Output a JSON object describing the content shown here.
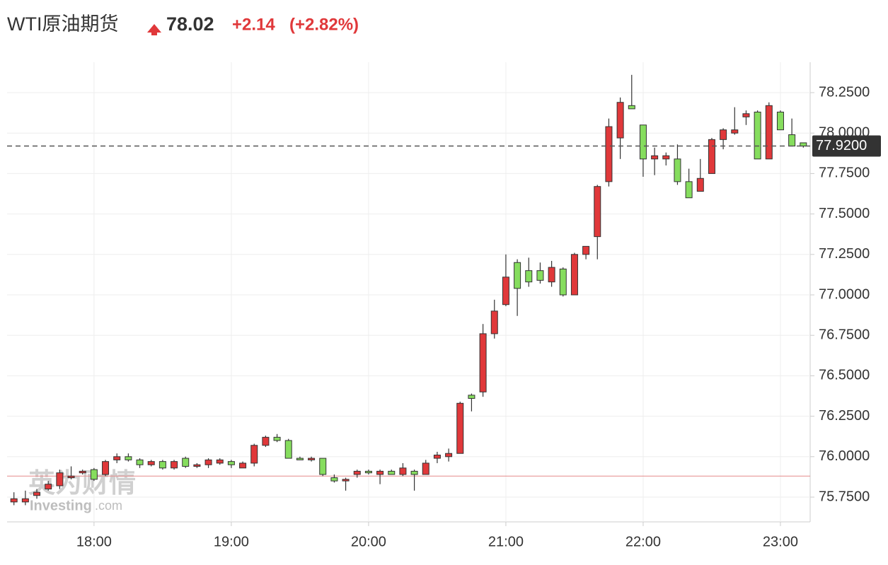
{
  "header": {
    "title": "WTI原油期货",
    "price": "78.02",
    "change": "+2.14",
    "change_pct": "(+2.82%)"
  },
  "watermark": {
    "cn": "英为财情",
    "en": "Investing",
    "en_suffix": ".com"
  },
  "chart_data": {
    "type": "candlestick",
    "x": [
      "17:25",
      "17:30",
      "17:35",
      "17:40",
      "17:45",
      "17:50",
      "17:55",
      "18:00",
      "18:05",
      "18:10",
      "18:15",
      "18:20",
      "18:25",
      "18:30",
      "18:35",
      "18:40",
      "18:45",
      "18:50",
      "18:55",
      "19:00",
      "19:05",
      "19:10",
      "19:15",
      "19:20",
      "19:25",
      "19:30",
      "19:35",
      "19:40",
      "19:45",
      "19:50",
      "19:55",
      "20:00",
      "20:05",
      "20:10",
      "20:15",
      "20:20",
      "20:25",
      "20:30",
      "20:35",
      "20:40",
      "20:45",
      "20:50",
      "20:55",
      "21:00",
      "21:05",
      "21:10",
      "21:15",
      "21:20",
      "21:25",
      "21:30",
      "21:35",
      "21:40",
      "21:45",
      "21:50",
      "21:55",
      "22:00",
      "22:05",
      "22:10",
      "22:15",
      "22:20",
      "22:25",
      "22:30",
      "22:35",
      "22:40",
      "22:45",
      "22:50",
      "22:55",
      "23:00",
      "23:05",
      "23:10"
    ],
    "open": [
      75.72,
      75.72,
      75.76,
      75.8,
      75.82,
      75.87,
      75.9,
      75.92,
      75.89,
      75.98,
      76.0,
      75.98,
      75.95,
      75.97,
      75.93,
      75.99,
      75.94,
      75.95,
      75.96,
      75.97,
      75.93,
      75.96,
      76.07,
      76.12,
      76.1,
      75.99,
      75.98,
      75.99,
      75.87,
      75.85,
      75.89,
      75.91,
      75.89,
      75.91,
      75.89,
      75.91,
      75.89,
      75.99,
      76.0,
      76.02,
      76.38,
      76.4,
      76.76,
      76.94,
      77.2,
      77.15,
      77.15,
      77.08,
      77.16,
      77.0,
      77.25,
      77.36,
      77.7,
      77.97,
      78.17,
      78.05,
      77.84,
      77.84,
      77.84,
      77.7,
      77.64,
      77.75,
      77.96,
      78.0,
      78.1,
      78.13,
      77.84,
      78.13,
      77.99,
      77.94
    ],
    "high": [
      75.78,
      75.79,
      75.8,
      75.85,
      75.92,
      75.94,
      75.92,
      75.93,
      75.98,
      76.02,
      76.02,
      75.99,
      75.98,
      75.98,
      75.98,
      76.0,
      75.96,
      75.99,
      75.99,
      75.98,
      75.97,
      76.08,
      76.13,
      76.14,
      76.11,
      76.0,
      76.0,
      75.99,
      75.89,
      75.87,
      75.92,
      75.92,
      75.92,
      75.92,
      75.96,
      75.92,
      75.98,
      76.03,
      76.05,
      76.34,
      76.39,
      76.82,
      76.97,
      77.25,
      77.22,
      77.23,
      77.2,
      77.21,
      77.17,
      77.26,
      77.3,
      77.68,
      78.09,
      78.22,
      78.36,
      78.05,
      77.91,
      77.88,
      77.93,
      77.78,
      77.84,
      77.97,
      78.03,
      78.16,
      78.14,
      78.14,
      78.19,
      78.14,
      78.09,
      77.94
    ],
    "low": [
      75.7,
      75.7,
      75.74,
      75.79,
      75.8,
      75.86,
      75.89,
      75.85,
      75.88,
      75.96,
      75.97,
      75.93,
      75.94,
      75.92,
      75.92,
      75.93,
      75.93,
      75.93,
      75.95,
      75.93,
      75.93,
      75.94,
      76.06,
      76.09,
      75.99,
      75.98,
      75.97,
      75.88,
      75.84,
      75.79,
      75.87,
      75.89,
      75.83,
      75.89,
      75.88,
      75.79,
      75.89,
      75.96,
      75.97,
      76.02,
      76.28,
      76.37,
      76.73,
      76.93,
      76.87,
      77.05,
      77.07,
      77.05,
      76.99,
      77.0,
      77.22,
      77.22,
      77.67,
      77.84,
      78.15,
      77.73,
      77.74,
      77.8,
      77.68,
      77.6,
      77.64,
      77.75,
      77.9,
      77.99,
      78.05,
      77.84,
      77.84,
      78.02,
      77.92,
      77.91
    ],
    "close": [
      75.74,
      75.74,
      75.78,
      75.83,
      75.9,
      75.88,
      75.91,
      75.86,
      75.97,
      76.0,
      75.98,
      75.95,
      75.97,
      75.93,
      75.97,
      75.94,
      75.95,
      75.98,
      75.98,
      75.95,
      75.96,
      76.07,
      76.12,
      76.1,
      75.99,
      75.98,
      75.99,
      75.89,
      75.85,
      75.86,
      75.91,
      75.9,
      75.91,
      75.89,
      75.93,
      75.89,
      75.96,
      76.01,
      76.02,
      76.33,
      76.36,
      76.76,
      76.9,
      77.11,
      77.04,
      77.08,
      77.09,
      77.17,
      77.0,
      77.25,
      77.3,
      77.67,
      78.04,
      78.19,
      78.15,
      77.84,
      77.86,
      77.86,
      77.7,
      77.6,
      77.72,
      77.96,
      78.02,
      78.02,
      78.12,
      77.84,
      78.17,
      78.02,
      77.92,
      77.92
    ],
    "up_color": "#e0383a",
    "down_color": "#86dd5e",
    "ylim": [
      75.597,
      78.438
    ],
    "yticks": [
      {
        "value": 75.75,
        "label": "75.7500"
      },
      {
        "value": 76.0,
        "label": "76.0000"
      },
      {
        "value": 76.25,
        "label": "76.2500"
      },
      {
        "value": 76.5,
        "label": "76.5000"
      },
      {
        "value": 76.75,
        "label": "76.7500"
      },
      {
        "value": 77.0,
        "label": "77.0000"
      },
      {
        "value": 77.25,
        "label": "77.2500"
      },
      {
        "value": 77.5,
        "label": "77.5000"
      },
      {
        "value": 77.75,
        "label": "77.7500"
      },
      {
        "value": 78.0,
        "label": "78.0000"
      },
      {
        "value": 78.25,
        "label": "78.2500"
      }
    ],
    "xlim": [
      "17:22",
      "23:13"
    ],
    "xticks": [
      "18:00",
      "19:00",
      "20:00",
      "21:00",
      "22:00",
      "23:00"
    ],
    "grid": true,
    "last_price": {
      "value": 77.92,
      "label": "77.9200"
    },
    "prev_close": 75.88
  }
}
